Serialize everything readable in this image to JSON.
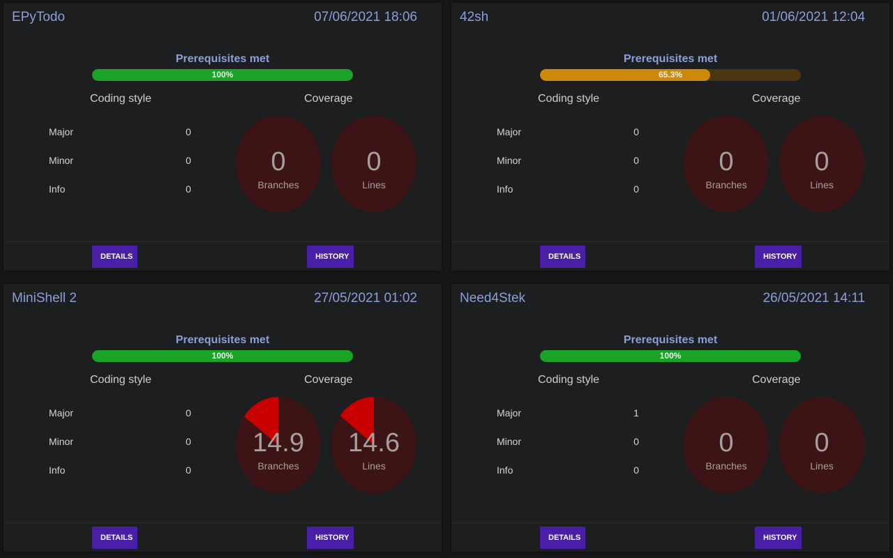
{
  "colors": {
    "card_bg": "#1d1e20",
    "title": "#8c9fd9",
    "green_fill": "#1aa326",
    "green_track": "#0f6b16",
    "orange_fill": "#cc8a08",
    "orange_track": "#4a3610",
    "gauge_bg": "#3d1416",
    "gauge_fill": "#c90000",
    "button": "#4a1fa8"
  },
  "cards": [
    {
      "title": "EPyTodo",
      "date": "07/06/2021 18:06",
      "prereq_label": "Prerequisites met",
      "prereq_value": 100,
      "prereq_text": "100%",
      "coding_style_label": "Coding style",
      "coverage_label": "Coverage",
      "major_label": "Major",
      "major": "0",
      "minor_label": "Minor",
      "minor": "0",
      "info_label": "Info",
      "info": "0",
      "branches_value": "0",
      "branches_label": "Branches",
      "branches_pct": 0,
      "lines_value": "0",
      "lines_label": "Lines",
      "lines_pct": 0,
      "details_label": "DETAILS",
      "history_label": "HISTORY"
    },
    {
      "title": "42sh",
      "date": "01/06/2021 12:04",
      "prereq_label": "Prerequisites met",
      "prereq_value": 65.3,
      "prereq_text": "65.3%",
      "coding_style_label": "Coding style",
      "coverage_label": "Coverage",
      "major_label": "Major",
      "major": "0",
      "minor_label": "Minor",
      "minor": "0",
      "info_label": "Info",
      "info": "0",
      "branches_value": "0",
      "branches_label": "Branches",
      "branches_pct": 0,
      "lines_value": "0",
      "lines_label": "Lines",
      "lines_pct": 0,
      "details_label": "DETAILS",
      "history_label": "HISTORY"
    },
    {
      "title": "MiniShell 2",
      "date": "27/05/2021 01:02",
      "prereq_label": "Prerequisites met",
      "prereq_value": 100,
      "prereq_text": "100%",
      "coding_style_label": "Coding style",
      "coverage_label": "Coverage",
      "major_label": "Major",
      "major": "0",
      "minor_label": "Minor",
      "minor": "0",
      "info_label": "Info",
      "info": "0",
      "branches_value": "14.9",
      "branches_label": "Branches",
      "branches_pct": 14.9,
      "lines_value": "14.6",
      "lines_label": "Lines",
      "lines_pct": 14.6,
      "details_label": "DETAILS",
      "history_label": "HISTORY"
    },
    {
      "title": "Need4Stek",
      "date": "26/05/2021 14:11",
      "prereq_label": "Prerequisites met",
      "prereq_value": 100,
      "prereq_text": "100%",
      "coding_style_label": "Coding style",
      "coverage_label": "Coverage",
      "major_label": "Major",
      "major": "1",
      "minor_label": "Minor",
      "minor": "0",
      "info_label": "Info",
      "info": "0",
      "branches_value": "0",
      "branches_label": "Branches",
      "branches_pct": 0,
      "lines_value": "0",
      "lines_label": "Lines",
      "lines_pct": 0,
      "details_label": "DETAILS",
      "history_label": "HISTORY"
    }
  ]
}
